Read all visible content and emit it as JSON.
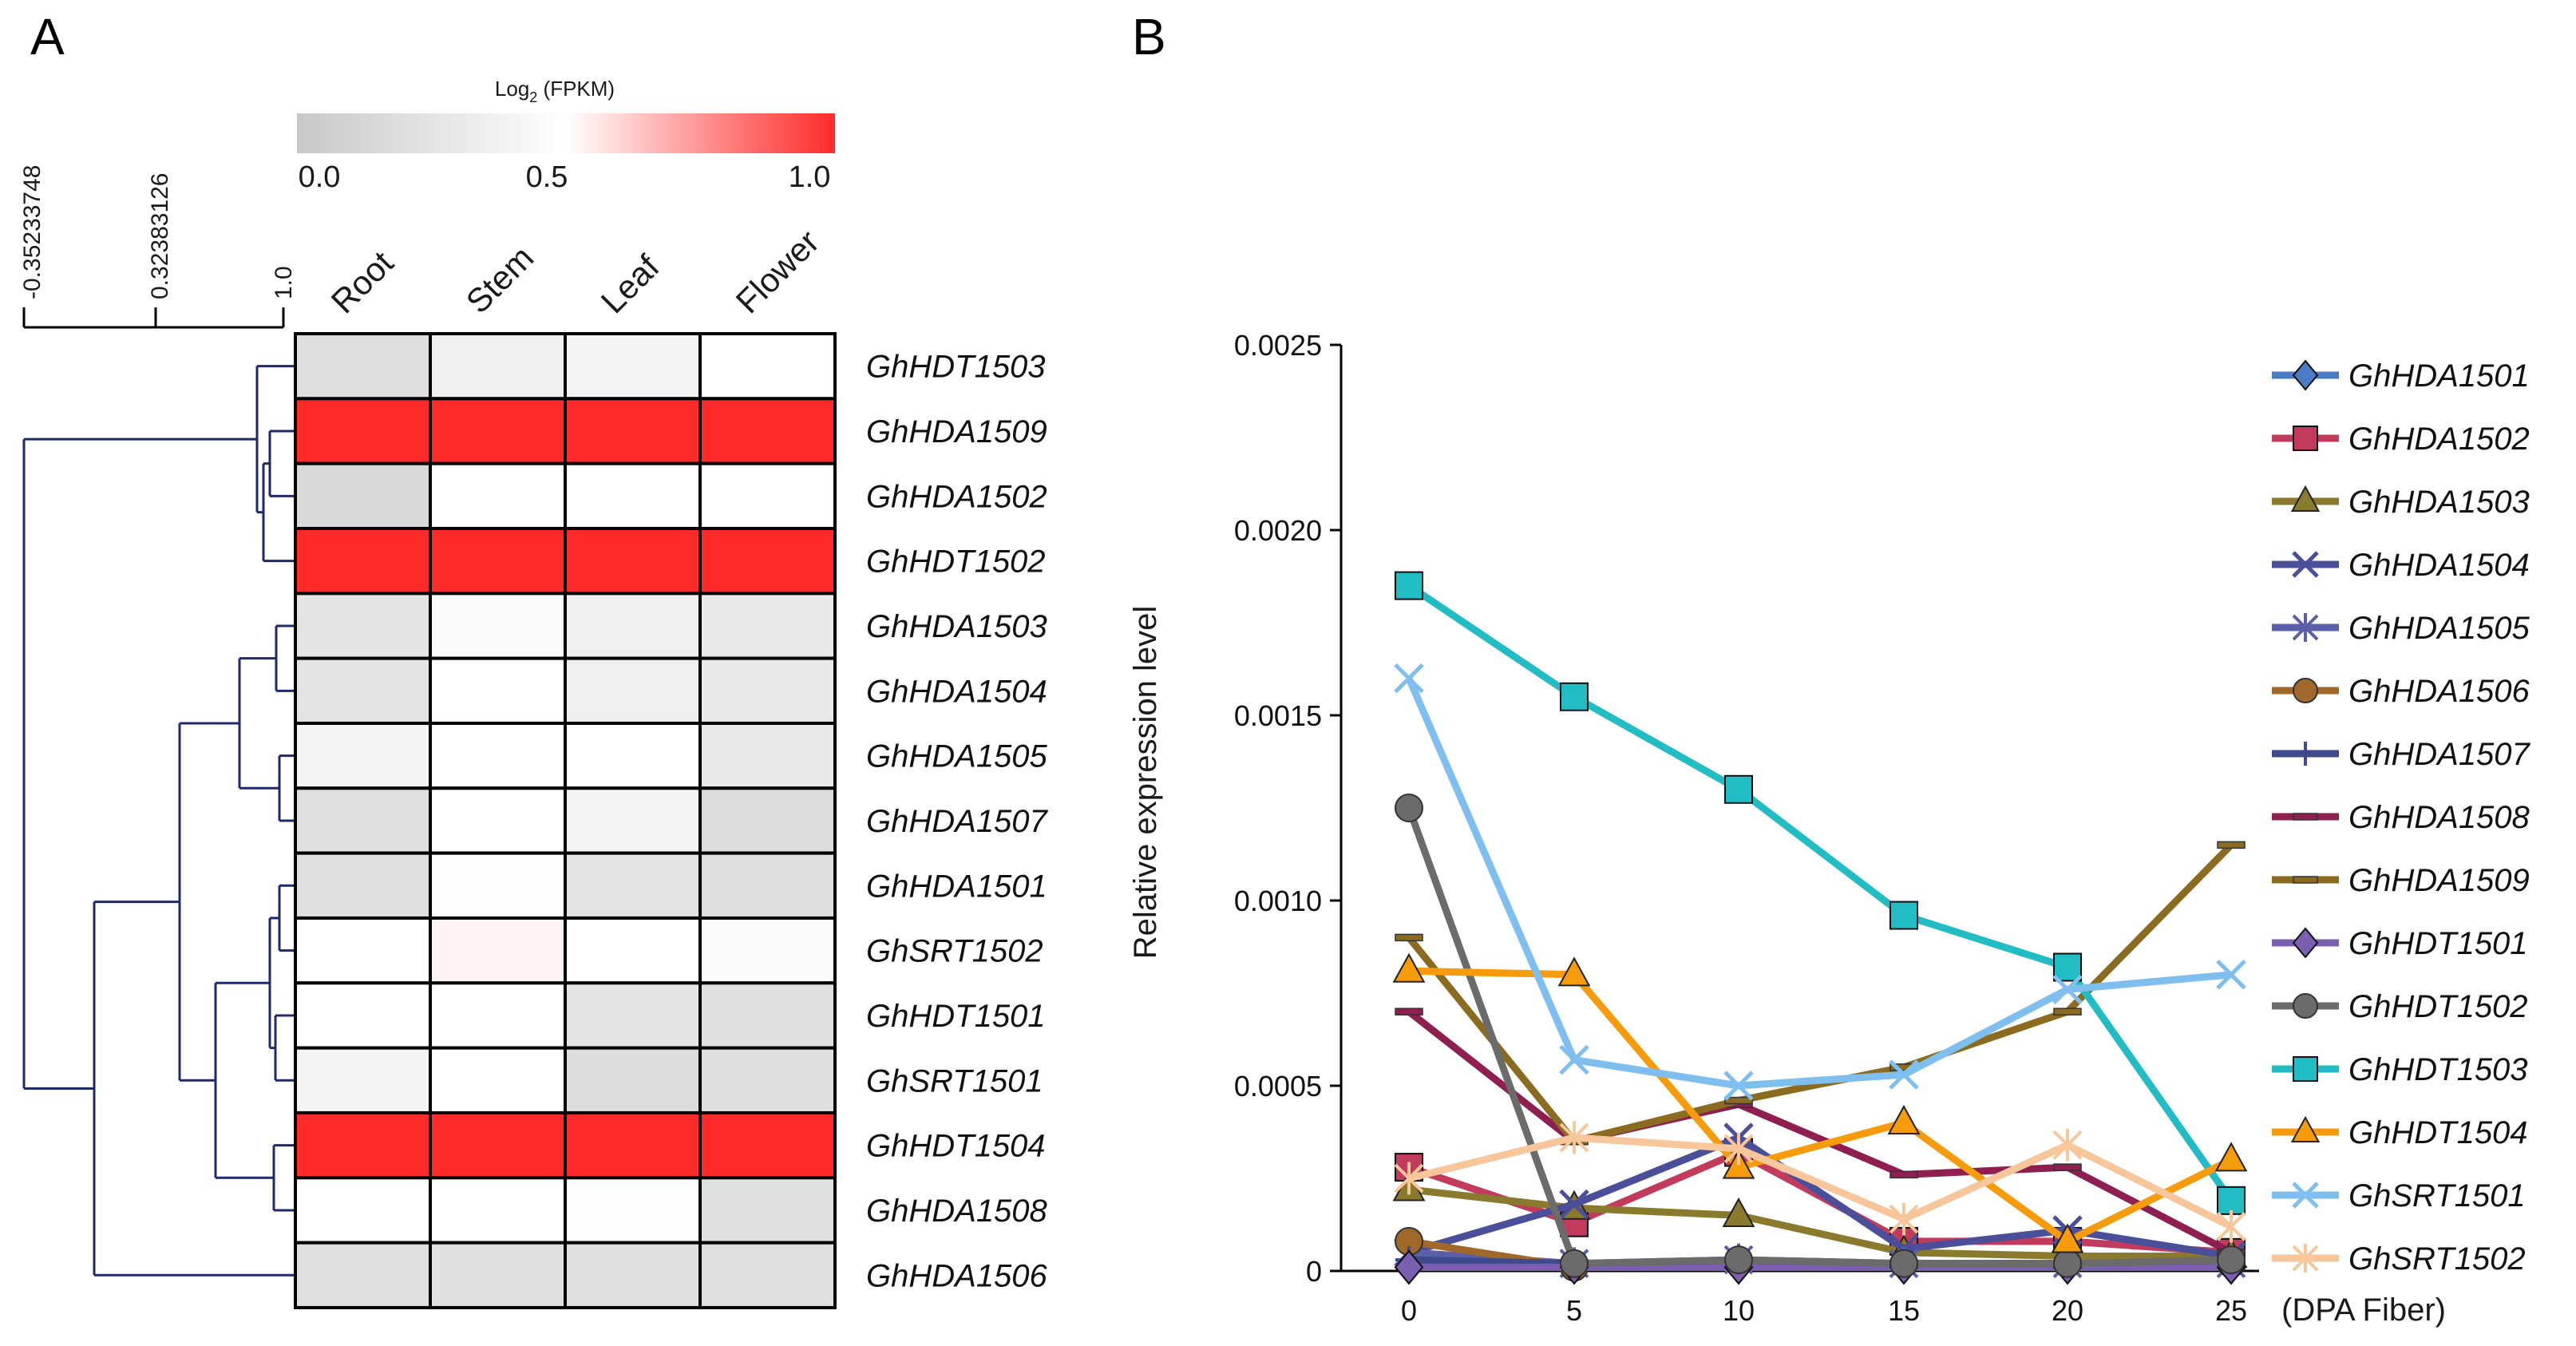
{
  "panels": {
    "a": "A",
    "b": "B"
  },
  "chart_data": [
    {
      "type": "heatmap",
      "panel": "A",
      "colorbar": {
        "title": "Log",
        "title_sub": "2",
        "title_suffix": " (FPKM)",
        "ticks": [
          "0.0",
          "0.5",
          "1.0"
        ],
        "colors": {
          "low": "#c8c8c8",
          "mid": "#ffffff",
          "high": "#ff2a2a"
        }
      },
      "dendrogram_scale": [
        "-0.35233748",
        "0.32383126",
        "1.0"
      ],
      "columns": [
        "Root",
        "Stem",
        "Leaf",
        "Flower"
      ],
      "rows": [
        "GhHDT1503",
        "GhHDA1509",
        "GhHDA1502",
        "GhHDT1502",
        "GhHDA1503",
        "GhHDA1504",
        "GhHDA1505",
        "GhHDA1507",
        "GhHDA1501",
        "GhSRT1502",
        "GhHDT1501",
        "GhSRT1501",
        "GhHDT1504",
        "GhHDA1508",
        "GhHDA1506"
      ],
      "values": [
        [
          0.2,
          0.35,
          0.4,
          0.5
        ],
        [
          1.0,
          1.0,
          1.0,
          1.0
        ],
        [
          0.15,
          0.5,
          0.5,
          0.5
        ],
        [
          1.0,
          1.0,
          1.0,
          1.0
        ],
        [
          0.25,
          0.45,
          0.35,
          0.3
        ],
        [
          0.25,
          0.5,
          0.35,
          0.3
        ],
        [
          0.4,
          0.5,
          0.5,
          0.3
        ],
        [
          0.22,
          0.5,
          0.4,
          0.18
        ],
        [
          0.22,
          0.49,
          0.25,
          0.2
        ],
        [
          0.5,
          0.53,
          0.5,
          0.45
        ],
        [
          0.5,
          0.5,
          0.25,
          0.22
        ],
        [
          0.4,
          0.5,
          0.18,
          0.2
        ],
        [
          1.0,
          1.0,
          1.0,
          1.0
        ],
        [
          0.5,
          0.5,
          0.48,
          0.22
        ],
        [
          0.22,
          0.22,
          0.22,
          0.22
        ]
      ]
    },
    {
      "type": "line",
      "panel": "B",
      "ylabel": "Relative expression level",
      "xlabel": "(DPA Fiber)",
      "x": [
        0,
        5,
        10,
        15,
        20,
        25
      ],
      "xticks": [
        "0",
        "5",
        "10",
        "15",
        "20",
        "25"
      ],
      "ylim": [
        0,
        0.0025
      ],
      "yticks": [
        "0",
        "0.0005",
        "0.0010",
        "0.0015",
        "0.0020",
        "0.0025"
      ],
      "series": [
        {
          "name": "GhHDA1501",
          "color": "#4a7bc4",
          "marker": "diamond",
          "values": [
            1e-05,
            1e-05,
            1e-05,
            1e-05,
            1e-05,
            1e-05
          ]
        },
        {
          "name": "GhHDA1502",
          "color": "#c23b5c",
          "marker": "square",
          "values": [
            0.00028,
            0.00013,
            0.00032,
            8e-05,
            8e-05,
            5e-05
          ]
        },
        {
          "name": "GhHDA1503",
          "color": "#8a7a2e",
          "marker": "triangle",
          "values": [
            0.00022,
            0.00017,
            0.00015,
            5e-05,
            4e-05,
            4e-05
          ]
        },
        {
          "name": "GhHDA1504",
          "color": "#4b4f9a",
          "marker": "x",
          "values": [
            5e-05,
            0.00018,
            0.00036,
            6e-05,
            0.00011,
            4e-05
          ]
        },
        {
          "name": "GhHDA1505",
          "color": "#5a5fa8",
          "marker": "star",
          "values": [
            5e-05,
            2e-05,
            3e-05,
            2e-05,
            2e-05,
            2e-05
          ]
        },
        {
          "name": "GhHDA1506",
          "color": "#a0682a",
          "marker": "circle",
          "values": [
            8e-05,
            1e-05,
            3e-05,
            2e-05,
            2e-05,
            2e-05
          ]
        },
        {
          "name": "GhHDA1507",
          "color": "#3e4a8c",
          "marker": "plus",
          "values": [
            3e-05,
            2e-05,
            2e-05,
            2e-05,
            2e-05,
            2e-05
          ]
        },
        {
          "name": "GhHDA1508",
          "color": "#8e1f50",
          "marker": "dash",
          "values": [
            0.0007,
            0.00035,
            0.00045,
            0.00026,
            0.00028,
            5e-05
          ]
        },
        {
          "name": "GhHDA1509",
          "color": "#8b6b20",
          "marker": "dash",
          "values": [
            0.0009,
            0.00035,
            0.00046,
            0.00055,
            0.0007,
            0.00115
          ]
        },
        {
          "name": "GhHDT1501",
          "color": "#7b5fb0",
          "marker": "diamond",
          "values": [
            1e-05,
            1e-05,
            1e-05,
            1e-05,
            1e-05,
            1e-05
          ]
        },
        {
          "name": "GhHDT1502",
          "color": "#6b6b6b",
          "marker": "circle",
          "values": [
            0.00125,
            2e-05,
            3e-05,
            2e-05,
            2e-05,
            3e-05
          ]
        },
        {
          "name": "GhHDT1503",
          "color": "#21bcc4",
          "marker": "square",
          "values": [
            0.00185,
            0.00155,
            0.0013,
            0.00096,
            0.00082,
            0.00019
          ]
        },
        {
          "name": "GhHDT1504",
          "color": "#f59b0c",
          "marker": "triangle",
          "values": [
            0.00081,
            0.0008,
            0.00028,
            0.0004,
            8e-05,
            0.0003
          ]
        },
        {
          "name": "GhSRT1501",
          "color": "#7fbff0",
          "marker": "x",
          "values": [
            0.0016,
            0.00057,
            0.0005,
            0.00053,
            0.00076,
            0.0008
          ]
        },
        {
          "name": "GhSRT1502",
          "color": "#f7c69a",
          "marker": "star",
          "values": [
            0.00025,
            0.00036,
            0.00033,
            0.00014,
            0.00034,
            0.00012
          ]
        }
      ]
    }
  ]
}
